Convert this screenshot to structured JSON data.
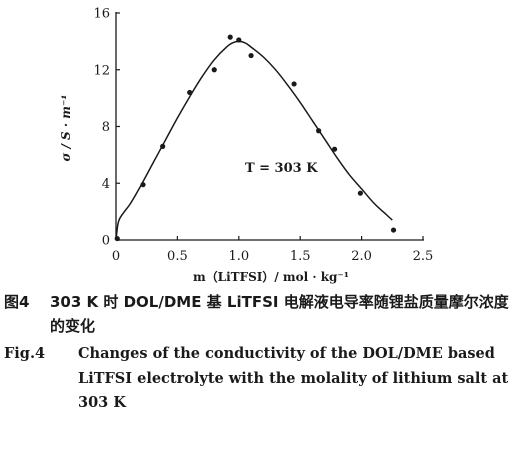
{
  "chart_data": {
    "type": "scatter",
    "xlabel": "m（LiTFSI）/ mol · kg⁻¹",
    "ylabel": "σ / S · m⁻¹",
    "xlim": [
      0,
      2.5
    ],
    "ylim": [
      0,
      16
    ],
    "x_ticks": [
      0,
      0.5,
      1.0,
      1.5,
      2.0,
      2.5
    ],
    "x_tick_labels": [
      "0",
      "0.5",
      "1.0",
      "1.5",
      "2.0",
      "2.5"
    ],
    "y_ticks": [
      0,
      4,
      8,
      12,
      16
    ],
    "y_tick_labels": [
      "0",
      "4",
      "8",
      "12",
      "16"
    ],
    "grid": false,
    "annotation": "T = 303 K",
    "annotation_position": {
      "x": 1.05,
      "y": 4.8
    },
    "series": [
      {
        "kind": "points",
        "x": [
          0.01,
          0.22,
          0.38,
          0.6,
          0.8,
          0.93,
          1.0,
          1.1,
          1.45,
          1.65,
          1.78,
          1.99,
          2.26
        ],
        "y": [
          0.1,
          3.9,
          6.6,
          10.4,
          12.0,
          14.3,
          14.1,
          13.0,
          11.0,
          7.7,
          6.4,
          3.3,
          0.7
        ]
      },
      {
        "kind": "fit-curve",
        "x": [
          0.0,
          0.02,
          0.06,
          0.12,
          0.2,
          0.3,
          0.4,
          0.5,
          0.6,
          0.7,
          0.8,
          0.9,
          0.95,
          1.0,
          1.05,
          1.1,
          1.2,
          1.3,
          1.4,
          1.5,
          1.6,
          1.7,
          1.8,
          1.9,
          2.0,
          2.1,
          2.2,
          2.25
        ],
        "y": [
          0.0,
          1.3,
          1.9,
          2.6,
          3.8,
          5.4,
          7.0,
          8.6,
          10.1,
          11.5,
          12.7,
          13.6,
          13.9,
          14.0,
          13.9,
          13.6,
          12.9,
          12.0,
          10.9,
          9.7,
          8.4,
          7.1,
          5.8,
          4.6,
          3.6,
          2.6,
          1.8,
          1.4
        ]
      }
    ]
  },
  "caption": {
    "zh_label": "图4",
    "zh_text": "303 K 时 DOL/DME 基 LiTFSI 电解液电导率随锂盐质量摩尔浓度的变化",
    "en_label": "Fig.4",
    "en_text": "Changes of the conductivity of the DOL/DME based LiTFSI electrolyte with the molality of lithium salt at 303 K"
  }
}
